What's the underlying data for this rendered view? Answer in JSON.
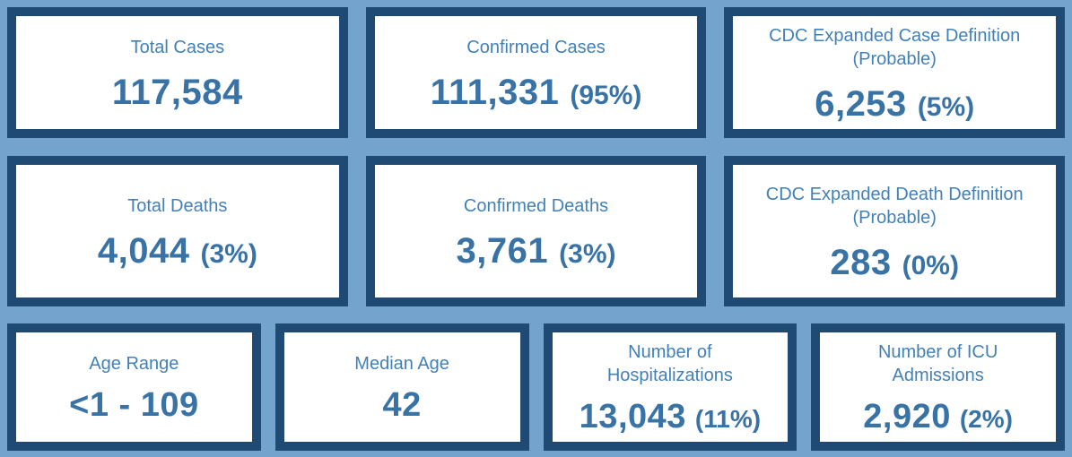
{
  "theme": {
    "page_background": "#74a3ce",
    "card_border": "#1f4a73",
    "card_background": "#ffffff",
    "label_color": "#4281b8",
    "value_color": "#3973a6"
  },
  "cards": [
    {
      "label": "Total Cases",
      "value": "117,584",
      "percent": ""
    },
    {
      "label": "Confirmed Cases",
      "value": "111,331",
      "percent": "(95%)"
    },
    {
      "label": "CDC Expanded Case Definition\n(Probable)",
      "value": "6,253",
      "percent": "(5%)"
    },
    {
      "label": "Total Deaths",
      "value": "4,044",
      "percent": "(3%)"
    },
    {
      "label": "Confirmed Deaths",
      "value": "3,761",
      "percent": "(3%)"
    },
    {
      "label": "CDC Expanded Death Definition\n(Probable)",
      "value": "283",
      "percent": "(0%)"
    },
    {
      "label": "Age Range",
      "value": "<1 - 109",
      "percent": ""
    },
    {
      "label": "Median Age",
      "value": "42",
      "percent": ""
    },
    {
      "label": "Number of\nHospitalizations",
      "value": "13,043",
      "percent": "(11%)"
    },
    {
      "label": "Number of ICU\nAdmissions",
      "value": "2,920",
      "percent": "(2%)"
    }
  ],
  "chart_data": {
    "type": "table",
    "columns": [
      "label",
      "value",
      "percent_of_total"
    ],
    "rows": [
      {
        "label": "Total Cases",
        "value": 117584,
        "percent": null
      },
      {
        "label": "Confirmed Cases",
        "value": 111331,
        "percent": 95
      },
      {
        "label": "CDC Expanded Case Definition (Probable)",
        "value": 6253,
        "percent": 5
      },
      {
        "label": "Total Deaths",
        "value": 4044,
        "percent": 3
      },
      {
        "label": "Confirmed Deaths",
        "value": 3761,
        "percent": 3
      },
      {
        "label": "CDC Expanded Death Definition (Probable)",
        "value": 283,
        "percent": 0
      },
      {
        "label": "Age Range",
        "value": "<1 - 109",
        "percent": null
      },
      {
        "label": "Median Age",
        "value": 42,
        "percent": null
      },
      {
        "label": "Number of Hospitalizations",
        "value": 13043,
        "percent": 11
      },
      {
        "label": "Number of ICU Admissions",
        "value": 2920,
        "percent": 2
      }
    ]
  }
}
